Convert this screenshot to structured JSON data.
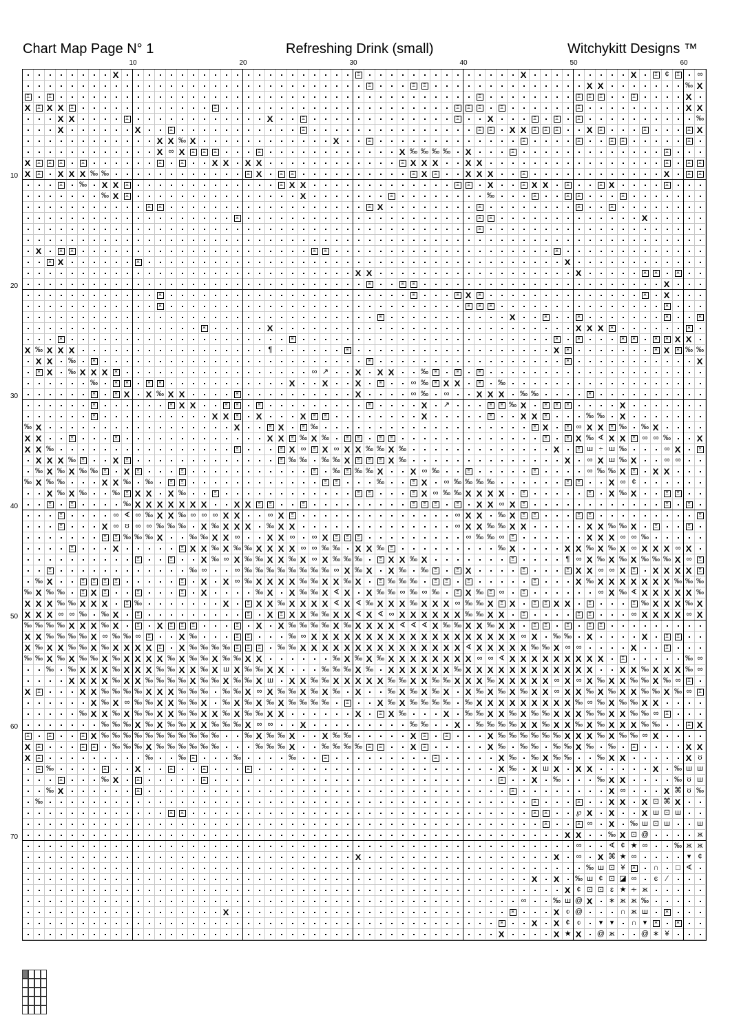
{
  "header": {
    "left": "Chart Map Page N° 1",
    "center": "Refreshing Drink (small)",
    "right": "Witchykitt Designs ™"
  },
  "chart_data": {
    "type": "cross-stitch-grid",
    "columns": 62,
    "rows": 79,
    "column_labels": [
      "10",
      "20",
      "30",
      "40",
      "50",
      "60"
    ],
    "row_labels": [
      "10",
      "20",
      "30",
      "40",
      "50",
      "60",
      "70"
    ],
    "symbol_codes": {
      "x": "hourglass-x",
      "e": "boxed-xi",
      "p": "‰",
      "o": "∞",
      "a": "∢",
      ".": "dot"
    },
    "cells": [
      "9x 31e 46x 56x 58e 59¢ 60e 62o",
      "32e 36e 37e 52x 53x 61p 62x",
      "1e 3e 42e 51e 52e 53e 56e 61x",
      "1x 2e 3x 4x 5e 18e 40e 41e 42e 44e 51e 61x 62x",
      "4x 5x 10e 23x 26e 40e 43x 47e 49e 51e 62p",
      "4x 11x 14e 26e 42e 43e 45x 46x 47e 48e 49e 52x 53e 57e 61e 62x",
      "13x 14x 15p 16x 29x 32e 46e 51e 54e 55e 61e",
      "13x 14o 15x 16e 17e 18e 22e 35x 36p 37p 38p 39p 41x 45e 59e",
      "1x 2e 3e 4e 6e 13e 15e 18x 19x 21x 22x 35e 36x 37x 38x 41x 42x 59e 61e 62e",
      "1x 2e 4x 5x 6x 7p 8p 21e 22x 24e 25e 36e 37x 38e 41x 42x 43x 46e 59x 61e 62e",
      "4e 6p 8x 9x 10e 24e 25x 26x 40e 41e 43x 46e 47x 48x 50e 53e 54x 59e",
      "8p 9x 10e 26x 34e 43p 47e 50e 51e 55e",
      "12e 13e 32e 33x 42e 51e 54e",
      "20e 42e 43e 57x",
      "42e",
      "",
      "2x 4e 5e 27e 28e 49e",
      "3e 4x 11e 50x",
      "31x 32x 51x 57e 58e 60e",
      "32e 35e 36e 59x",
      "13e 36e 40e 41x 42e 57e 59x",
      "13e 41e 42e 43e 59e",
      "33e 45x 48e 51e 59e 62e",
      "17e 23x 51x 52x 53x 54e 61e",
      "4e 25e 49e 51e 55e 56e 58e 59e 60x 61x",
      "1x 2p 3x 4x 5x 23¶ 30e 49x 50e 58e 59x 60e 61p 62p",
      "2x 3x 5p 7e 32e 50e 62x",
      "2e 3x 5p 6x 7x 8x 9e 27o 28↗ 31x 33x 34x 37p 38e 40e 42e",
      "7p 9e 10e 12e 13e 25x 28x 31x 33e 36o 37p 38e 39x 40x 42e 44p",
      "7e 9e 10x 12x 13p 14x 15x 20e 31x 36o 37p 39o 42x 43x 44x 46p 47p 52e",
      "7e 14e 15x 16x 19e 20e 22e 32e 37x 39↗ 43e 44e 45p 46x 48e 49e 50e 55x",
      "7e 18x 19x 20e 22x 26x 27e 28e 37x 43e 46x 47x 48e 52p 53p 55x",
      "1p 2x 20x 23e 24x 26e 27p 47e 48x 50e 51o 52x 53x 54e 55p 57p 58x",
      "1x 2x 5e 9e 23x 24x 25e 26p 27x 28p 30e 31e 33e 34e 48e 50e 51x 52p 53a 54x 55x 56e 57o 58o 59p 62x",
      "1x 2x 3p 20e 24e 25x 26o 27e 28x 29o 30x 31x 32p 33p 34x 35p 49x 51e 52ш 53÷ 54ш 55p 59o 60x 62e",
      "2x 3x 4x 5p 6e 9x 10e 24e 25p 26p 28p 29p 30x 31e 32e 33e 34x 35p 50x 52o 53x 54ш 55p 56x 59o 60o",
      "2p 3x 4p 5x 6p 7p 8e 10x 11e 15e 27e 29p 30e 31p 32p 33x 36x 37o 38p 41e 47e 52o 53p 54p 55x 56e 58x 59x",
      "1p 2x 3p 4p 8x 9x 10p 12p 14e 15e 28e 29e 33p 36e 37x 39o 40p 41p 42p 43p 50e 51e 54x 55o 56¢",
      "3x 4p 5x 6p 9p 10e 11x 12x 14x 15p 18e 31e 32e 36e 37x 38o 39p 40p 41x 42x 43x 44x 46e 52e 54x 55p 56x 59e 60e",
      "3e 5e 10p 11x 12x 13x 14x 15x 16x 17x 20x 21x 22e 23e 26e 36e 37e 38e 40e 42x 43x 44o 45x 46e 59e 61e",
      "4e 9o 10a 11o 12p 13x 14x 15p 16o 17o 18o 19x 20x 23o 24x 25e 40o 41x 42x 44p 45x 46e 47e 51e 52e 62e",
      "4e 8x 9o 10ʊ 11o 12o 13p 14p 15p 17x 18p 19x 20x 21x 23p 24x 25x 40o 41x 42x 43p 44p 45x 46x 52x 53x 54p 55p 56x 58e 61e",
      "8e 9e 10p 11p 12p 13x 16p 17p 18x 19x 20o 23x 24x 25o 27o 28x 29e 30e 31e 41o 42p 43p 44o 45e 52x 53x 54x 55o 56o 57p",
      "5e 9x 15e 16x 17x 18p 19x 20p 21p 22x 23x 24x 25x 26o 27o 28p 29p 31x 32x 33p 34e 44p 45x 50x 51x 52p 53x 54p 55x 56o 57x 58x 59x 60o 61x",
      "11e 14e 17x 18p 19o 20x 21p 22p 23x 24x 25p 26x 27o 28x 29p 30p 31p 33e 34x 35x 36p 37x 45e 50¶ 51o 52x 53p 54x 55p 56x 57p 58p 59p 60x 61o 62e",
      "3e 16p 17o 20o 21p 22p 23p 24p 25p 26p 27p 28p 29o 30x 31p 32x 34x 35p 37p 38e 40e 41x 46e 50e 51x 52x 53o 54o 55x 56e 58x 59x 60x 61x 62e",
      "2p 3x 6e 7e 8e 9e 15e 17x 19x 20o 21p 22x 23x 24x 25x 26p 27p 28x 29x 30p 31x 33e 34p 35p 36p 38e 39e 41e 47e 51x 52p 53x 54x 55x 56x 57x 58x 59x 60p 61p 62p",
      "1p 2x 3p 4p 6e 7x 8e 11e 15e 17x 22p 23x 25x 26p 27p 28x 29a 30x 32x 33p 34p 35o 36p 37o 38p 40e 41x 42p 43e 44o 46e 53o 54x 55p 56a 57x 58x 59x 60x 61x 62p",
      "1x 2x 3x 4p 5p 6x 7x 8x 10e 11p 19x 21e 22x 23x 24p 25x 26x 27x 28x 29a 30x 31a 32p 33x 34x 35x 36p 37x 38x 39x 40o 41p 42p 43x 44e 45x 47e 48e 49x 50x 52e 56e 57p 58x 59x 60x 61p 62x",
      "1x 2x 3x 4o 5o 6p 8p 9x 11e 21e 23x 24e 25x 26x 27p 28p 29x 30x 31a 32x 33a 34o 35x 36x 37x 38x 39x 40x 41p 42p 43x 44x 46e 51e 52e 56o 57x 58x 59x 60x 61o 62x",
      "1p 2p 3p 4p 5x 6x 7x 8p 9x 11e 13x 14e 15e 16e 20e 22x 24x 25p 26p 27p 28p 29x 30p 31x 32x 33x 34x 35a 36a 37a 38x 39p 40p 41x 42x 43p 44x 45x 47e 48e 50e 52e 53e",
      "1x 2x 3p 4p 5p 6p 7x 8o 9p 10p 11o 12e 15x 16p 20e 21e 25p 26o 27x 28x 29x 30x 31x 32x 33x 34x 35x 36x 37x 38x 39x 40x 41x 42x 43x 44x 45x 46o 47x 49p 50p 52x 57x 59e 60e",
      "1x 2p 3x 4x 5p 6p 7x 8p 9x 10x 11x 12x 13e 15x 16p 17p 18p 19p 20e 21e 22e 24p 25p 26x 27x 28x 29x 30x 31x 32x 33x 34x 35x 36x 37x 38x 39x 40x 41a 42x 43x 44x 45x 46x 47p 48p 49x 50o 51o 56x 59e",
      "1p 2p 3x 4p 5x 6p 7p 8x 9p 10x 11x 12x 13x 14p 15x 16p 17p 18x 19p 20p 21x 22x 29p 30x 31p 32x 33p 34x 35x 36x 37x 38x 39x 40x 41x 42o 43o 44a 45x 46x 47x 48x 49x 50x 51x 52x 53x 55e 61p 62o",
      "3p 5p 6x 7x 8x 9p 10x 11x 12x 13p 14p 15x 16x 17p 18x 19ш 20x 21p 22p 23x 24x 28p 29p 30p 31x 32p 34x 35x 36x 37x 38x 39x 40p 41x 42x 43x 44x 45x 46x 47x 48x 49x 50x 51x 52x 55x 56x 57p 58x 59x 60x 61p 62o",
      "5x 6x 7x 8x 9p 10x 11x 12p 13p 14p 15p 16x 17p 18p 19x 20p 21p 22x 23ш 25x 26x 27p 28p 29x 30x 31x 32x 33x 34p 35p 36x 37x 38p 39p 40x 41x 42x 43p 44x 45x 46x 47x 48x 49o 50x 51o 52x 53p 54x 55x 56p 57p 58x 59p 60o 61e",
      "1x 2e 6x 7x 8p 9p 10p 11p 12x 13x 14x 15p 16p 17p 19p 20p 21x 22o 23x 24p 25p 26x 27p 28x 29p 31x 34p 35x 36p 37x 38p 39x 41x 42p 43x 44p 45x 46p 47x 48x 49o 50x 51x 52p 53x 54p 55x 56x 57p 58p 59x 60p 61o 62e",
      "7x 8p 9x 10o 11p 12p 13x 14x 15p 16p 17x 19p 20x 21p 22x 23p 24x 25p 26p 27p 28p 30e 33x 34p 35x 36p 37p 38p 39p 41p 42x 43x 44x 45x 46x 47x 48x 49x 50x 51p 52o 53p 54x 55p 56p 57x 58x",
      "6p 7x 8x 9p 10x 11p 12p 13x 14x 15p 16p 17x 18x 19p 20x 21p 22p 23x 24x 31x 33e 34x 35p 39x 41p 42p 43x 44x 45p 46x 47p 48p 49x 50x 51x 52p 53p 54x 55x 56p 57p 58o 59e",
      "8p 9p 10p 11x 12p 13x 14p 15p 16x 17x 18p 19p 20p 21x 22o 23o 26x 36p 37p 40x 42p 43p 44p 45p 46x 47x 48p 49x 50x 51p 52x 53p 54x 55x 56x 57p 58p 61e 62x",
      "1e 3e 6e 7x 8p 9p 10p 11p 12p 13p 14p 15p 16p 17p 18p 21p 22x 23p 24p 25x 28x 29p 30p 36x 37e 39e 43x 44p 45p 46p 47p 48p 49p 50x 51x 52x 53p 54x 55p 56p 57o 58x",
      "1x 2e 6e 7e 9p 10p 11p 12x 13p 14p 15p 16p 17p 18p 22p 23p 24p 25x 28p 29p 30p 31p 32e 33e 36x 37e 43x 44p 46p 47p 49p 50p 51x 52p 54p 56e 61x 62x",
      "1x 2e 12p 15p 16e 20p 25p 28e 38e 44x 45p 47p 48x 49p 50p 53p 54x 55x 61x 62ʊ",
      "2e 3p 8e 11x 14e 17e 21e 44x 45p 47x 48ш 49x 51x 52x 58x 60p 61ш 62ш",
      "4e 8p 9x 11e 17e 44e 47x 49p 53p 54x 55x 60p 61ʊ 62ш",
      "3p 4x 11e 45e 54x 55o 59x 60⌘ 61ʊ 62p",
      "2p 47e 51e 54x 55x 57x 58⊡ 59⌘ 60x",
      "14e 15e 47e 48e 51℘ 52x 54x 57x 58ш 59⊡ 60ш",
      "48e 51e 52o 54x 56p 57ш 58⊡ 59ш 62ш",
      "50x 51x 54p 55x 56⊡ 57@ 62ж",
      "51o 54a 55¢ 56★ 57o 60p 61ж 62ж",
      "31x 49x 51o 53x 54⌘ 55★ 56o 61▾ 62¢",
      "52p 53ш 54⊡ 55¥ 56e 58∩ 60□ 61a",
      "47x 49x 51p 52ш 53¢ 54⊡ 55◪ 56o 58ͼ 59⁄",
      "50x 51¢ 52⊡ 53⊡ 54ɛ 55★ 56∻ 57ж",
      "46o 49p 50ш 51@ 52x 54∗ 55ж 56ж 57p",
      "19x 45e 49x 50⌽ 51@ 55∩ 56ж 57ш 59e",
      "44e 47x 49x 50¢ 51⌽ 53▾ 54▾ 56∩ 57▾ 58e 60e",
      "44x 49x 50★ 51x 53@ 54ж 57@ 58∗ 59¥"
    ]
  },
  "page_map": {
    "columns": 4,
    "rows": 5,
    "current_page": 1,
    "current_color": "#777777"
  }
}
